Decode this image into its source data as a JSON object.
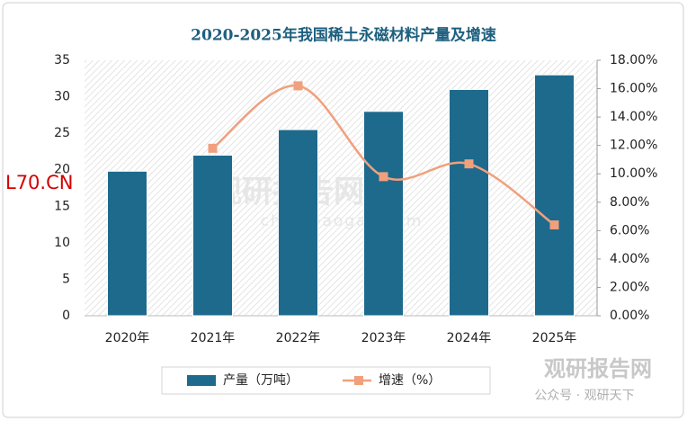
{
  "chart_data": {
    "type": "bar",
    "title": "2020-2025年我国稀土永磁材料产量及增速",
    "categories": [
      "2020年",
      "2021年",
      "2022年",
      "2023年",
      "2024年",
      "2025年"
    ],
    "series": [
      {
        "name": "产量（万吨）",
        "type": "bar",
        "color": "#1d6a8d",
        "values": [
          19.8,
          22,
          25.5,
          28,
          31,
          33
        ]
      },
      {
        "name": "增速（%）",
        "type": "line",
        "axis": "y2",
        "color": "#f0a07c",
        "values": [
          null,
          11.8,
          16.2,
          9.8,
          10.7,
          6.4
        ]
      }
    ],
    "ylim": [
      0,
      35
    ],
    "yticks": [
      0,
      5,
      10,
      15,
      20,
      25,
      30,
      35
    ],
    "y2lim": [
      0,
      18
    ],
    "y2ticks": [
      {
        "value": 0,
        "label": "0.00%"
      },
      {
        "value": 2,
        "label": "2.00%"
      },
      {
        "value": 4,
        "label": "4.00%"
      },
      {
        "value": 6,
        "label": "6.00%"
      },
      {
        "value": 8,
        "label": "8.00%"
      },
      {
        "value": 10,
        "label": "10.00%"
      },
      {
        "value": 12,
        "label": "12.00%"
      },
      {
        "value": 14,
        "label": "14.00%"
      },
      {
        "value": 16,
        "label": "16.00%"
      },
      {
        "value": 18,
        "label": "18.00%"
      }
    ],
    "legend": "bottom",
    "annotations": [
      "L70.CN"
    ],
    "watermarks": [
      "观研报告网",
      "chinabaogao.com",
      "观研报告网",
      "公众号 · 观研天下"
    ]
  }
}
